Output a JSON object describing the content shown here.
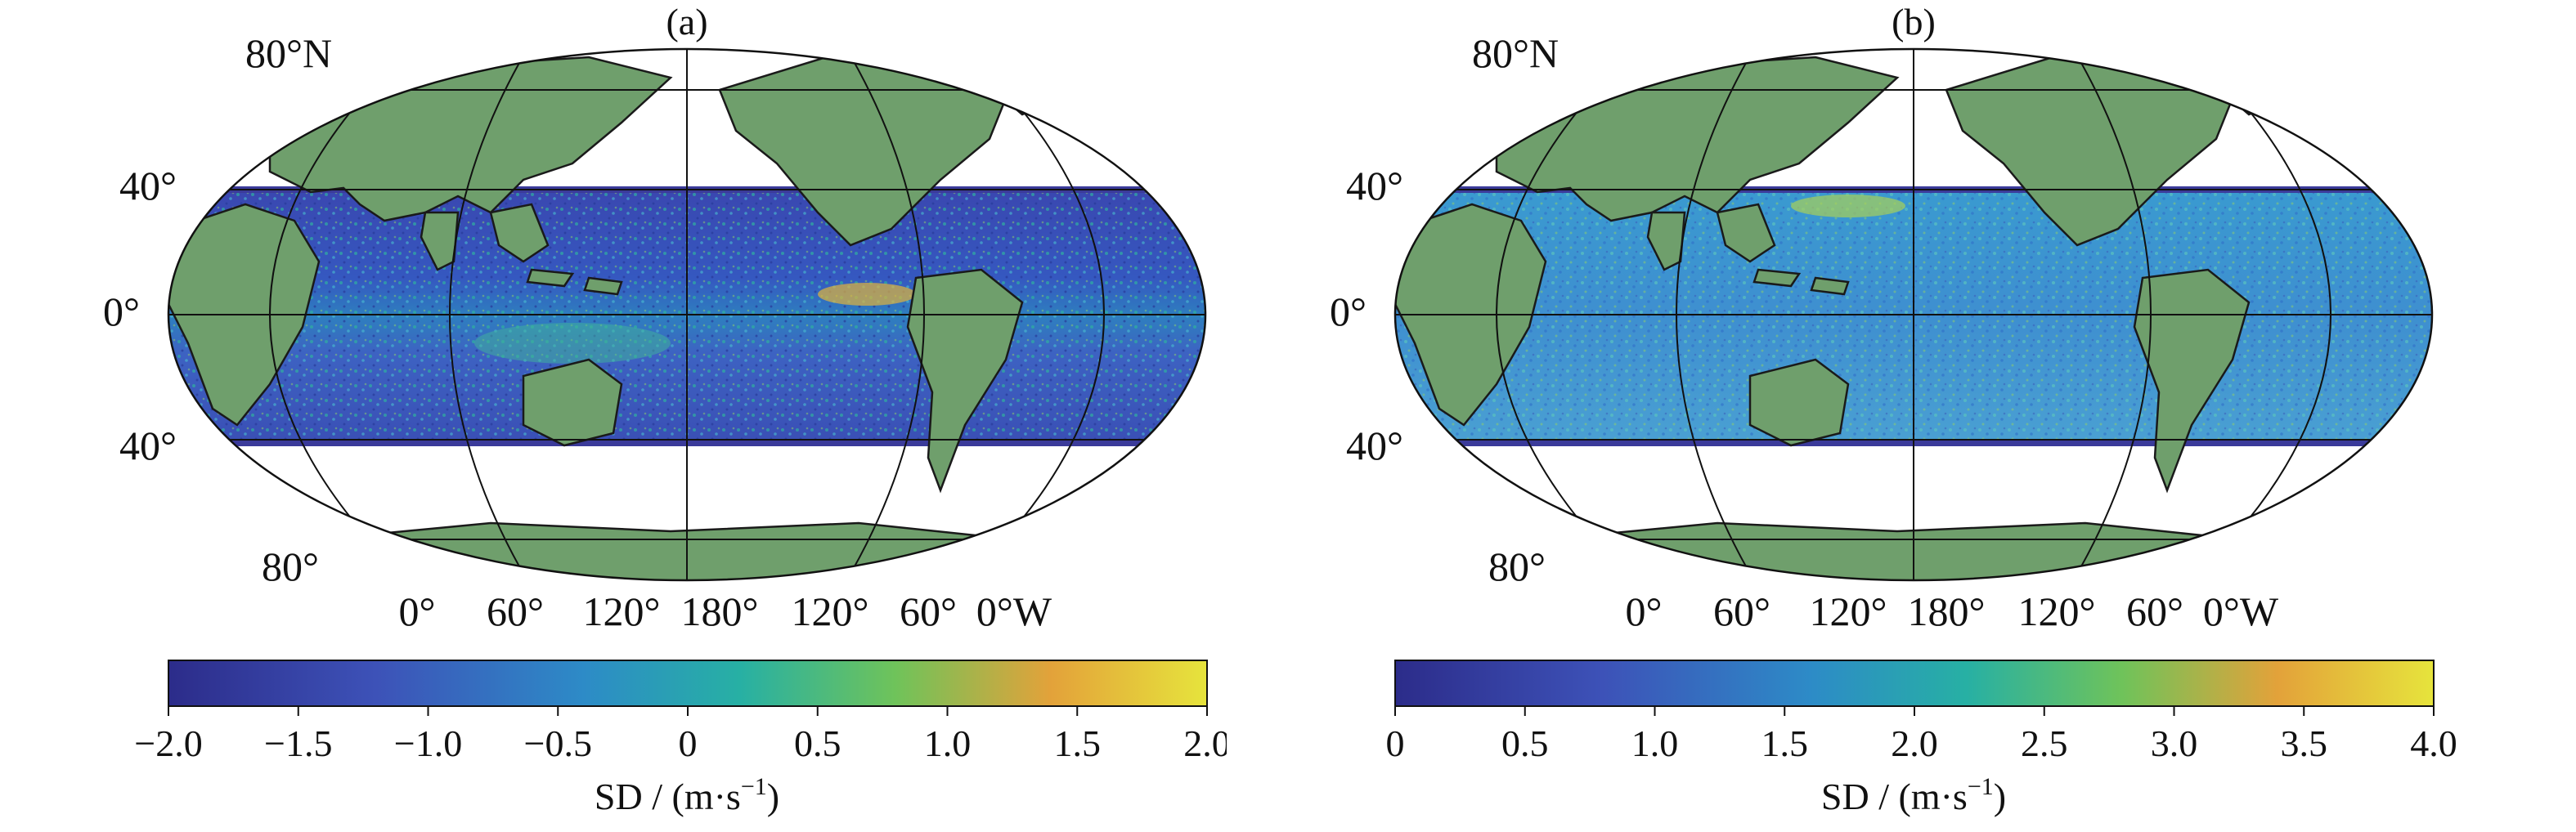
{
  "colors": {
    "land": "#6f9f6c",
    "ocean_low": "#3e3f9c",
    "ocean_mid": "#22a0a0",
    "ocean_high": "#e8e23a",
    "grid": "#111111"
  },
  "panels": [
    {
      "id": "a",
      "title": "(a)",
      "lat_labels": [
        "80°N",
        "40°",
        "0°",
        "40°",
        "80°"
      ],
      "lon_labels": [
        "0°",
        "60°",
        "120°",
        "180°",
        "120°",
        "60°",
        "0°W"
      ],
      "colorbar": {
        "ticks": [
          "−2.0",
          "−1.5",
          "−1.0",
          "−0.5",
          "0",
          "0.5",
          "1.0",
          "1.5",
          "2.0"
        ],
        "min": -2.0,
        "max": 2.0,
        "label": "SD / (m·s",
        "label_sup": "−1",
        "label_end": ")"
      }
    },
    {
      "id": "b",
      "title": "(b)",
      "lat_labels": [
        "80°N",
        "40°",
        "0°",
        "40°",
        "80°"
      ],
      "lon_labels": [
        "0°",
        "60°",
        "120°",
        "180°",
        "120°",
        "60°",
        "0°W"
      ],
      "colorbar": {
        "ticks": [
          "0",
          "0.5",
          "1.0",
          "1.5",
          "2.0",
          "2.5",
          "3.0",
          "3.5",
          "4.0"
        ],
        "min": 0,
        "max": 4.0,
        "label": "SD / (m·s",
        "label_sup": "−1",
        "label_end": ")"
      }
    }
  ]
}
